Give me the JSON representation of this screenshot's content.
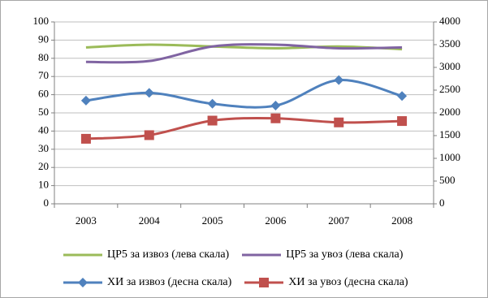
{
  "chart_data": {
    "type": "line",
    "categories": [
      "2003",
      "2004",
      "2005",
      "2006",
      "2007",
      "2008"
    ],
    "y_left": {
      "min": 0,
      "max": 100,
      "ticks": [
        "0",
        "10",
        "20",
        "30",
        "40",
        "50",
        "60",
        "70",
        "80",
        "90",
        "100"
      ]
    },
    "y_right": {
      "min": 0,
      "max": 4000,
      "ticks": [
        "0",
        "500",
        "1000",
        "1500",
        "2000",
        "2500",
        "3000",
        "3500",
        "4000"
      ]
    },
    "grid": "horizontal",
    "legend_position": "bottom",
    "series": [
      {
        "name": "ЦР5 за извоз (лева скала)",
        "axis": "left",
        "color": "#9BBB59",
        "marker": "none",
        "values": [
          86,
          87.5,
          86.5,
          85.5,
          86.5,
          85
        ]
      },
      {
        "name": "ЦР5 за увоз (лева скала)",
        "axis": "left",
        "color": "#8064A2",
        "marker": "none",
        "values": [
          78,
          78.5,
          86.5,
          87.5,
          85.5,
          86
        ]
      },
      {
        "name": "ХИ за извоз (десна скала)",
        "axis": "right",
        "color": "#4F81BD",
        "marker": "diamond",
        "values": [
          2270,
          2440,
          2200,
          2160,
          2720,
          2370
        ]
      },
      {
        "name": "ХИ за увоз (десна скала)",
        "axis": "right",
        "color": "#C0504D",
        "marker": "square",
        "values": [
          1430,
          1510,
          1830,
          1880,
          1790,
          1820
        ]
      }
    ]
  }
}
